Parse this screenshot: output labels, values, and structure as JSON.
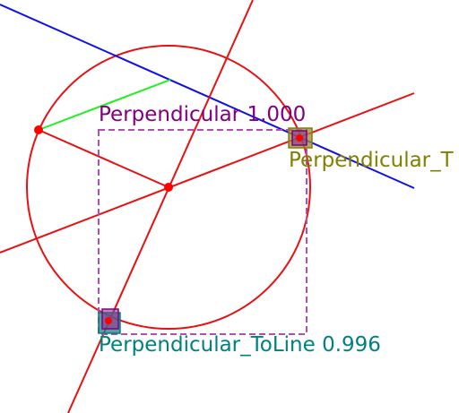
{
  "colors": {
    "circle": "#e81010",
    "lines_red": "#e81010",
    "line_blue": "#1010e8",
    "segment_green": "#22ee22",
    "label_purple": "#800080",
    "label_olive": "#808000",
    "label_teal": "#008080",
    "box_purple": "#b050b0",
    "point": "#ff0000"
  },
  "labels": {
    "perpendicular": "Perpendicular 1.000",
    "perpendicular_truncated": "Perpendicular_T",
    "perpendicular_to_line": "Perpendicular_ToLine 0.996"
  }
}
